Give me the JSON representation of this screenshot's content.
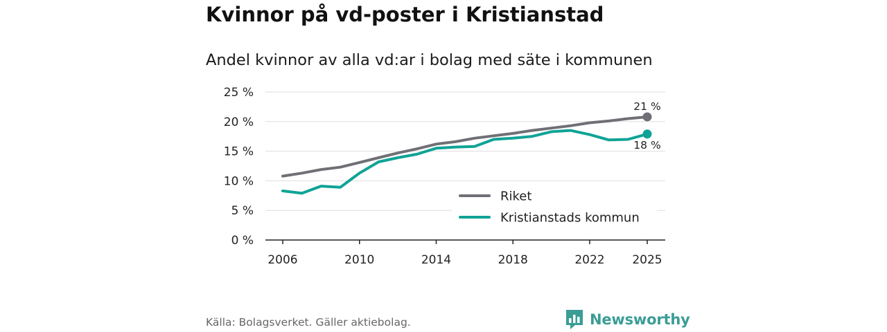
{
  "title": "Kvinnor på vd-poster i Kristianstad",
  "subtitle": "Andel kvinnor av alla vd:ar i bolag med säte i kommunen",
  "source": "Källa: Bolagsverket. Gäller aktiebolag.",
  "brand": "Newsworthy",
  "colors": {
    "riket": "#6f6f76",
    "kommun": "#0fa396",
    "grid": "#dddddd",
    "brand": "#3a9d96"
  },
  "chart_data": {
    "type": "line",
    "title": "Andel kvinnor av alla vd:ar i bolag med säte i kommunen",
    "xlabel": "",
    "ylabel": "",
    "xlim": [
      2006,
      2025
    ],
    "ylim": [
      0,
      25
    ],
    "x_ticks": [
      "2006",
      "2010",
      "2014",
      "2018",
      "2022",
      "2025"
    ],
    "y_ticks": [
      "0 %",
      "5 %",
      "10 %",
      "15 %",
      "20 %",
      "25 %"
    ],
    "x": [
      2006,
      2007,
      2008,
      2009,
      2010,
      2011,
      2012,
      2013,
      2014,
      2015,
      2016,
      2017,
      2018,
      2019,
      2020,
      2021,
      2022,
      2023,
      2024,
      2025
    ],
    "series": [
      {
        "name": "Riket",
        "color": "#6f6f76",
        "end_label": "21 %",
        "values": [
          10.8,
          11.3,
          11.9,
          12.3,
          13.1,
          13.9,
          14.7,
          15.4,
          16.2,
          16.6,
          17.2,
          17.6,
          18.0,
          18.5,
          18.9,
          19.3,
          19.8,
          20.1,
          20.5,
          20.8
        ]
      },
      {
        "name": "Kristianstads kommun",
        "color": "#0fa396",
        "end_label": "18 %",
        "values": [
          8.3,
          7.9,
          9.1,
          8.9,
          11.3,
          13.2,
          13.9,
          14.5,
          15.5,
          15.7,
          15.8,
          17.0,
          17.2,
          17.5,
          18.3,
          18.5,
          17.8,
          16.9,
          17.0,
          17.9
        ]
      }
    ],
    "legend": [
      "Riket",
      "Kristianstads kommun"
    ],
    "legend_position": "bottom-right",
    "grid": true
  }
}
